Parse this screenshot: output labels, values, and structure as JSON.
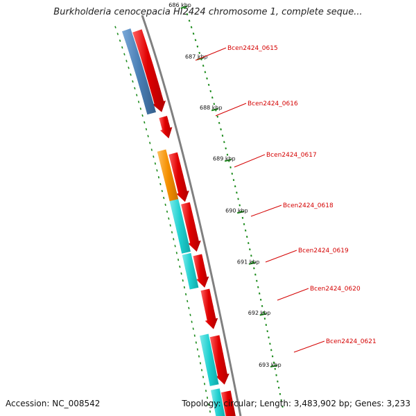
{
  "title": "Burkholderia cenocepacia HI2424 chromosome 1, complete seque...",
  "accession": "Accession: NC_008542",
  "stats": "Topology: circular; Length: 3,483,902 bp; Genes: 3,233",
  "ticks": [
    {
      "label": "686 kbp"
    },
    {
      "label": "687 kbp"
    },
    {
      "label": "688 kbp"
    },
    {
      "label": "689 kbp"
    },
    {
      "label": "690 kbp"
    },
    {
      "label": "691 kbp"
    },
    {
      "label": "692 kbp"
    },
    {
      "label": "693 kbp"
    }
  ],
  "gene_labels": [
    "Bcen2424_0615",
    "Bcen2424_0616",
    "Bcen2424_0617",
    "Bcen2424_0618",
    "Bcen2424_0619",
    "Bcen2424_0620",
    "Bcen2424_0621"
  ],
  "colors": {
    "backbone": "#808080",
    "cds": "#e00000",
    "feature_blue": "#4a7fb5",
    "feature_orange": "#f59000",
    "feature_cyan": "#1fcfcf",
    "feature_olive": "#6b9a2a",
    "tick": "#1a8a1a",
    "label": "#d40000"
  }
}
